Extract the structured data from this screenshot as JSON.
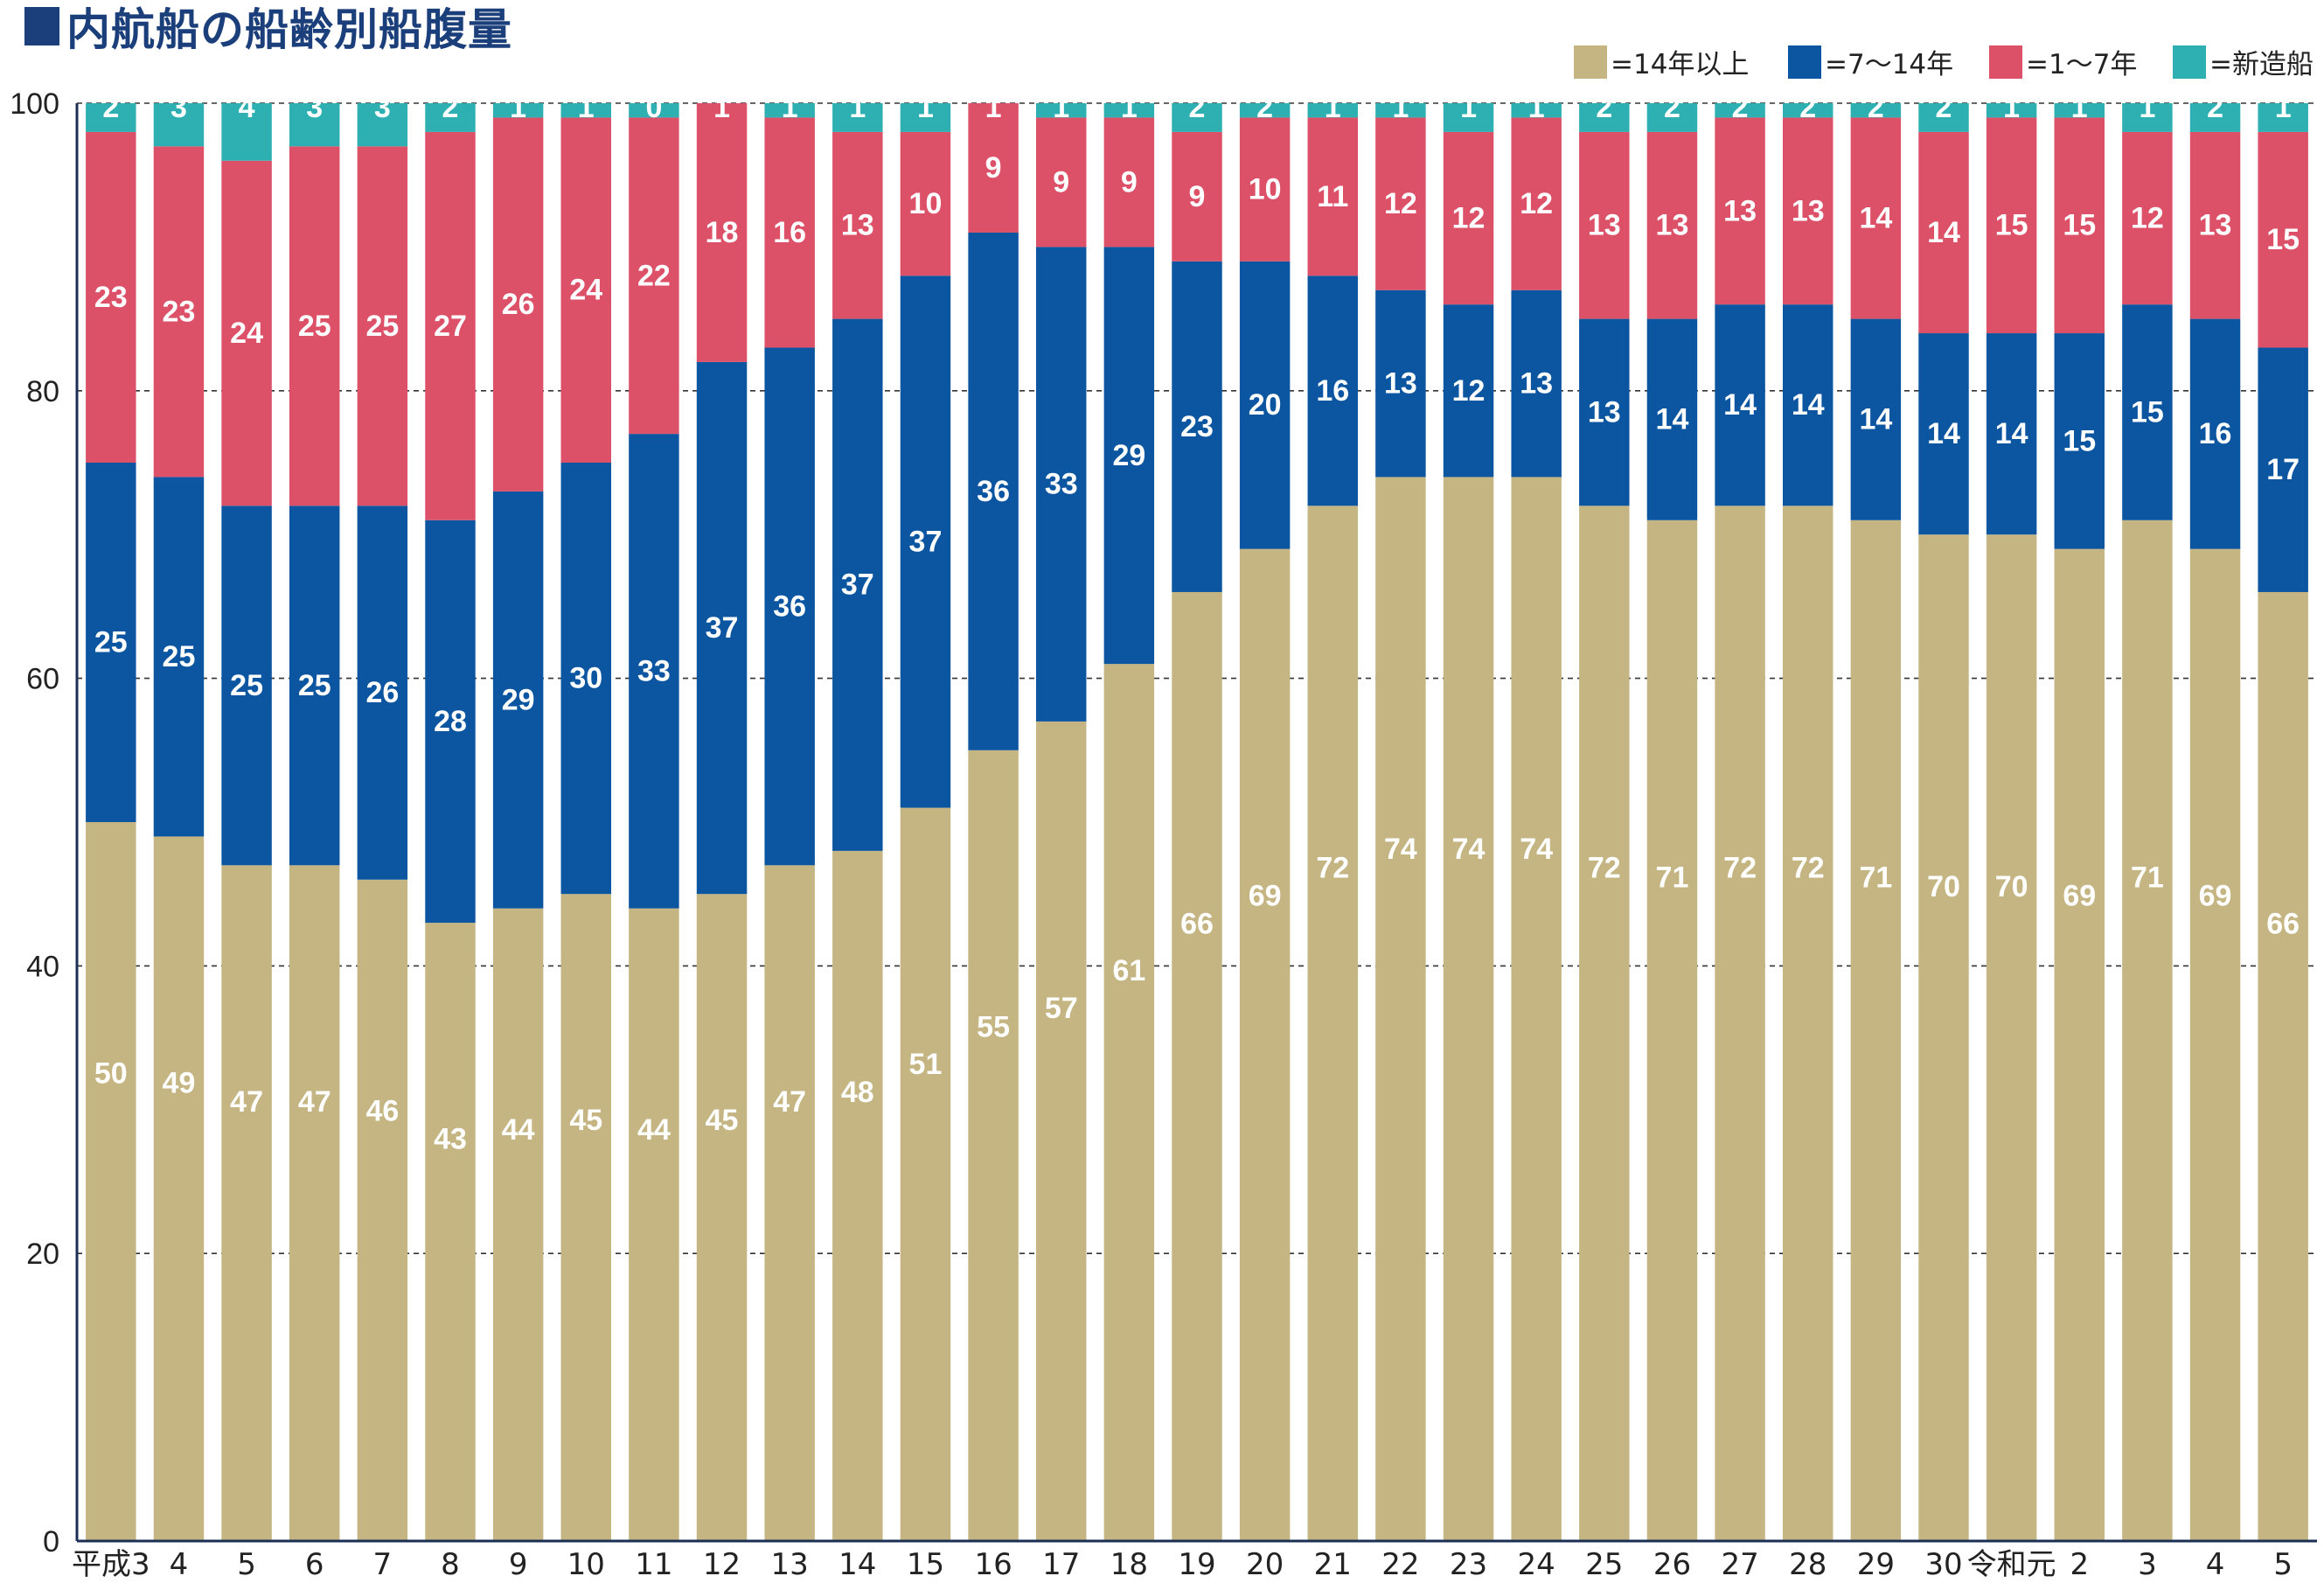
{
  "title": "内航船の船齢別船腹量",
  "colors": {
    "over14": "#c4b582",
    "y7to14": "#0b55a1",
    "y1to7": "#dc5068",
    "new": "#2eb0b2",
    "title": "#1b3f7a"
  },
  "chart_data": {
    "type": "bar",
    "stacked": true,
    "title": "内航船の船齢別船腹量",
    "xlabel": "",
    "ylabel": "",
    "ylim": [
      0,
      100
    ],
    "yticks": [
      0,
      20,
      40,
      60,
      80,
      100
    ],
    "legend_position": "top-right",
    "categories": [
      "平成3",
      "4",
      "5",
      "6",
      "7",
      "8",
      "9",
      "10",
      "11",
      "12",
      "13",
      "14",
      "15",
      "16",
      "17",
      "18",
      "19",
      "20",
      "21",
      "22",
      "23",
      "24",
      "25",
      "26",
      "27",
      "28",
      "29",
      "30",
      "令和元",
      "2",
      "3",
      "4",
      "5"
    ],
    "series": [
      {
        "name": "=14年以上",
        "color_key": "over14",
        "values": [
          50,
          49,
          47,
          47,
          46,
          43,
          44,
          45,
          44,
          45,
          47,
          48,
          51,
          55,
          57,
          61,
          66,
          69,
          72,
          74,
          74,
          74,
          72,
          71,
          72,
          72,
          71,
          70,
          70,
          69,
          71,
          69,
          66
        ]
      },
      {
        "name": "=7～14年",
        "color_key": "y7to14",
        "values": [
          25,
          25,
          25,
          25,
          26,
          28,
          29,
          30,
          33,
          37,
          36,
          37,
          37,
          36,
          33,
          29,
          23,
          20,
          16,
          13,
          12,
          13,
          13,
          14,
          14,
          14,
          14,
          14,
          14,
          15,
          15,
          16,
          17
        ]
      },
      {
        "name": "=1～7年",
        "color_key": "y1to7",
        "values": [
          23,
          23,
          24,
          25,
          25,
          27,
          26,
          24,
          22,
          18,
          16,
          13,
          10,
          9,
          9,
          9,
          9,
          10,
          11,
          12,
          12,
          12,
          13,
          13,
          13,
          13,
          14,
          14,
          15,
          15,
          12,
          13,
          15
        ]
      },
      {
        "name": "=新造船",
        "color_key": "new",
        "values": [
          2,
          3,
          4,
          3,
          3,
          2,
          1,
          1,
          0,
          1,
          1,
          1,
          1,
          1,
          1,
          1,
          2,
          2,
          1,
          1,
          1,
          1,
          2,
          2,
          2,
          2,
          2,
          2,
          1,
          1,
          1,
          2,
          1
        ]
      }
    ]
  }
}
